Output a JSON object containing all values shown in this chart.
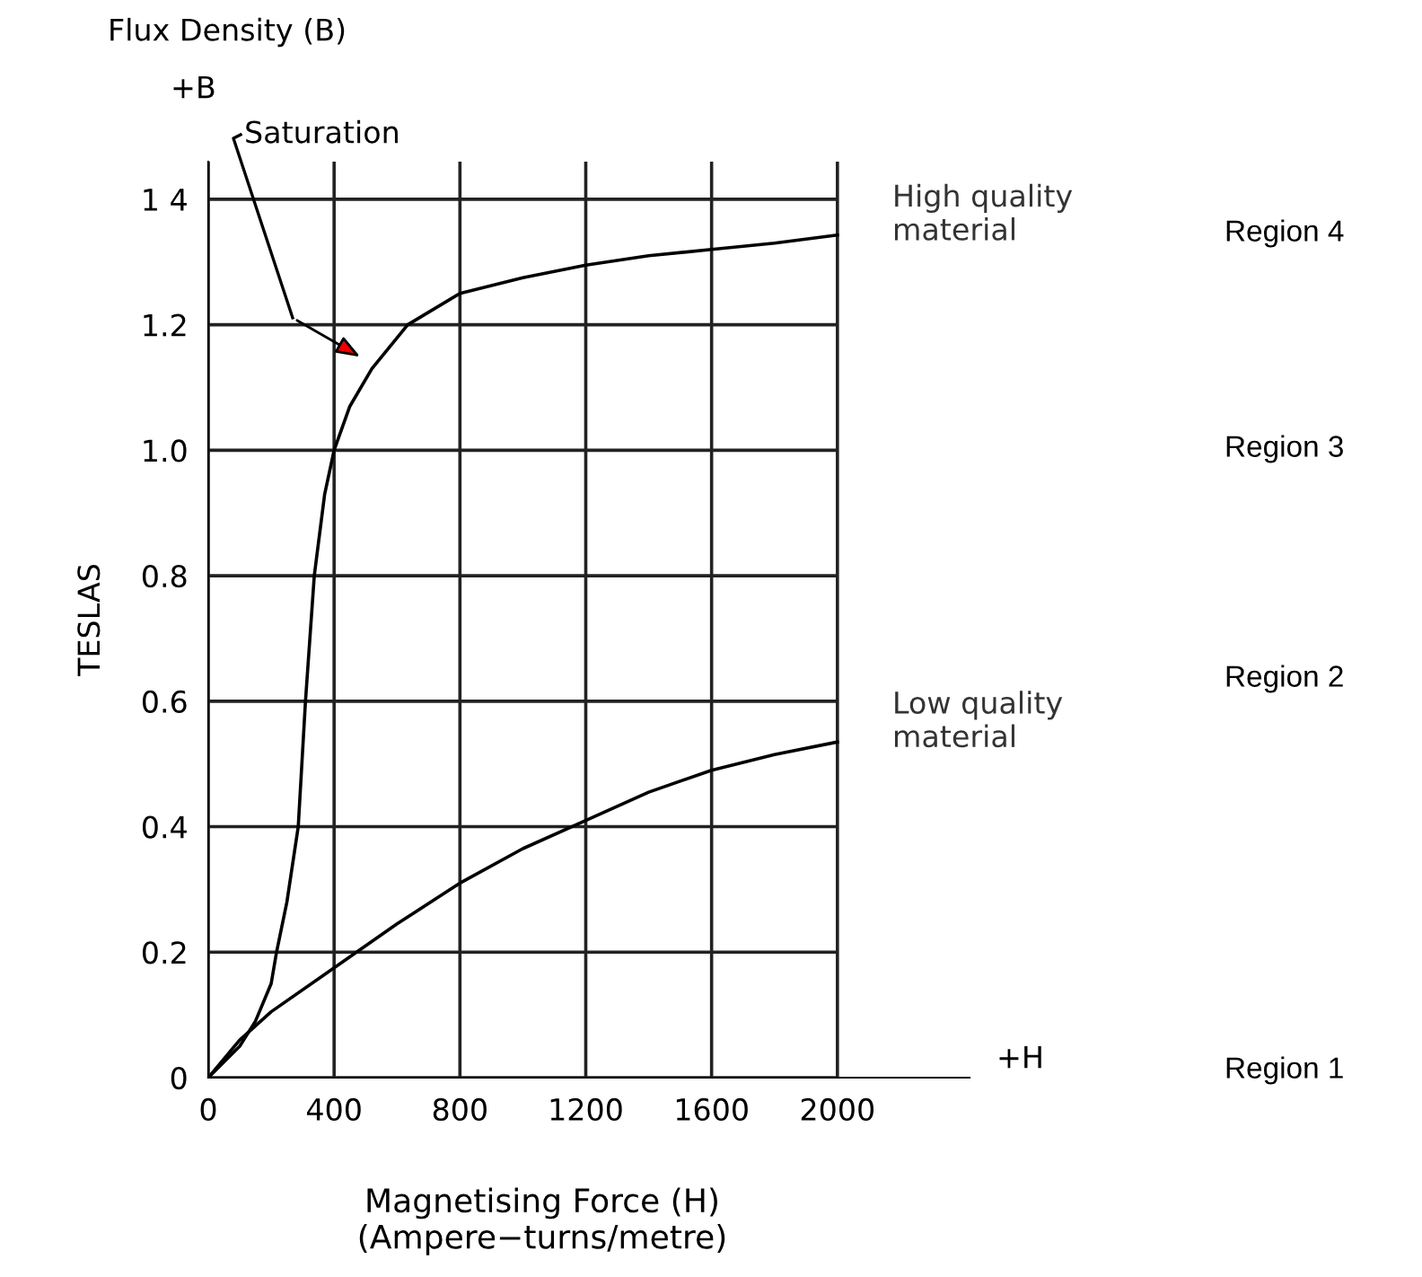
{
  "chart_data": {
    "type": "line",
    "xlabel": "Magnetising Force (H)\n(Ampere−turns/metre)",
    "ylabel": "TESLAS",
    "xlim": [
      0,
      2420
    ],
    "ylim": [
      0,
      1.46
    ],
    "xticks": [
      0,
      400,
      800,
      1200,
      1600,
      2000
    ],
    "yticks": [
      0,
      0.2,
      0.4,
      0.6,
      0.8,
      {
        "value": 1.0,
        "label": "1.0"
      },
      1.2,
      {
        "value": 1.4,
        "label": "1 4"
      }
    ],
    "grid": true,
    "series": [
      {
        "name": "High quality\nmaterial",
        "color": "#000000",
        "x": [
          0,
          100,
          150,
          200,
          217,
          250,
          286,
          309,
          337,
          370,
          400,
          450,
          520,
          634,
          800,
          1000,
          1200,
          1400,
          1600,
          1800,
          2000
        ],
        "values": [
          0,
          0.05,
          0.09,
          0.15,
          0.2,
          0.28,
          0.4,
          0.6,
          0.8,
          0.93,
          1.0,
          1.07,
          1.13,
          1.2,
          1.25,
          1.275,
          1.295,
          1.31,
          1.32,
          1.33,
          1.343
        ]
      },
      {
        "name": "Low quality\nmaterial",
        "color": "#000000",
        "x": [
          0,
          100,
          200,
          400,
          600,
          800,
          1000,
          1200,
          1400,
          1600,
          1800,
          2000
        ],
        "values": [
          0,
          0.06,
          0.105,
          0.175,
          0.245,
          0.31,
          0.365,
          0.41,
          0.455,
          0.49,
          0.515,
          0.535
        ]
      }
    ],
    "annotations": [
      "Saturation",
      "Flux Density (B)",
      "+B",
      "+H",
      "Region 4",
      "Region 3",
      "Region 2",
      "Region 1"
    ]
  }
}
